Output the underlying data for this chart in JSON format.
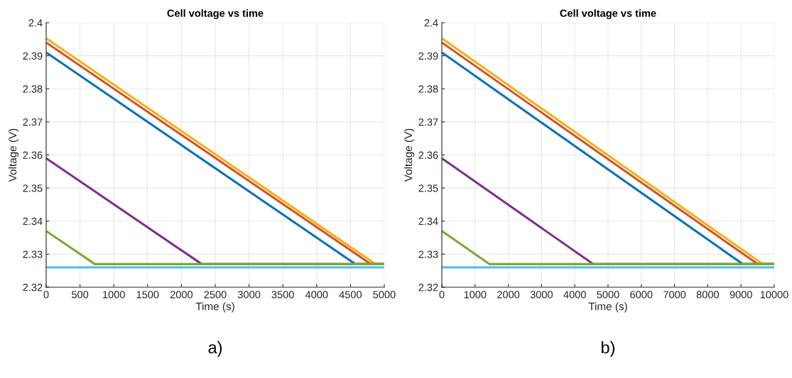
{
  "chart_data": [
    {
      "type": "line",
      "title": "Cell voltage vs time",
      "xlabel": "Time (s)",
      "ylabel": "Voltage (V)",
      "annotations": [
        "a)"
      ],
      "grid": true,
      "xlim": [
        0,
        5000
      ],
      "xticks": [
        0,
        500,
        1000,
        1500,
        2000,
        2500,
        3000,
        3500,
        4000,
        4500,
        5000
      ],
      "ylim": [
        2.32,
        2.4
      ],
      "yticks": [
        2.32,
        2.33,
        2.34,
        2.35,
        2.36,
        2.37,
        2.38,
        2.39,
        2.4
      ],
      "series": [
        {
          "color": "#0072bd",
          "x": [
            0,
            4570,
            5000
          ],
          "values": [
            2.391,
            2.327,
            2.327
          ]
        },
        {
          "color": "#d95319",
          "x": [
            0,
            4800,
            5000
          ],
          "values": [
            2.394,
            2.327,
            2.327
          ]
        },
        {
          "color": "#edb120",
          "x": [
            0,
            4870,
            5000
          ],
          "values": [
            2.3953,
            2.327,
            2.327
          ]
        },
        {
          "color": "#7e2f8e",
          "x": [
            0,
            2300,
            5000
          ],
          "values": [
            2.359,
            2.327,
            2.327
          ]
        },
        {
          "color": "#77ac30",
          "x": [
            0,
            720,
            5000
          ],
          "values": [
            2.337,
            2.327,
            2.327
          ]
        },
        {
          "color": "#4dbeee",
          "x": [
            0,
            5000
          ],
          "values": [
            2.326,
            2.326
          ]
        }
      ]
    },
    {
      "type": "line",
      "title": "Cell voltage vs time",
      "xlabel": "Time (s)",
      "ylabel": "Voltage (V)",
      "annotations": [
        "b)"
      ],
      "grid": true,
      "xlim": [
        0,
        10000
      ],
      "xticks": [
        0,
        1000,
        2000,
        3000,
        4000,
        5000,
        6000,
        7000,
        8000,
        9000,
        10000
      ],
      "ylim": [
        2.32,
        2.4
      ],
      "yticks": [
        2.32,
        2.33,
        2.34,
        2.35,
        2.36,
        2.37,
        2.38,
        2.39,
        2.4
      ],
      "series": [
        {
          "color": "#0072bd",
          "x": [
            0,
            9050,
            10000
          ],
          "values": [
            2.391,
            2.327,
            2.327
          ]
        },
        {
          "color": "#d95319",
          "x": [
            0,
            9500,
            10000
          ],
          "values": [
            2.394,
            2.327,
            2.327
          ]
        },
        {
          "color": "#edb120",
          "x": [
            0,
            9650,
            10000
          ],
          "values": [
            2.3953,
            2.327,
            2.327
          ]
        },
        {
          "color": "#7e2f8e",
          "x": [
            0,
            4550,
            10000
          ],
          "values": [
            2.359,
            2.327,
            2.327
          ]
        },
        {
          "color": "#77ac30",
          "x": [
            0,
            1430,
            10000
          ],
          "values": [
            2.337,
            2.327,
            2.327
          ]
        },
        {
          "color": "#4dbeee",
          "x": [
            0,
            10000
          ],
          "values": [
            2.326,
            2.326
          ]
        }
      ]
    }
  ]
}
